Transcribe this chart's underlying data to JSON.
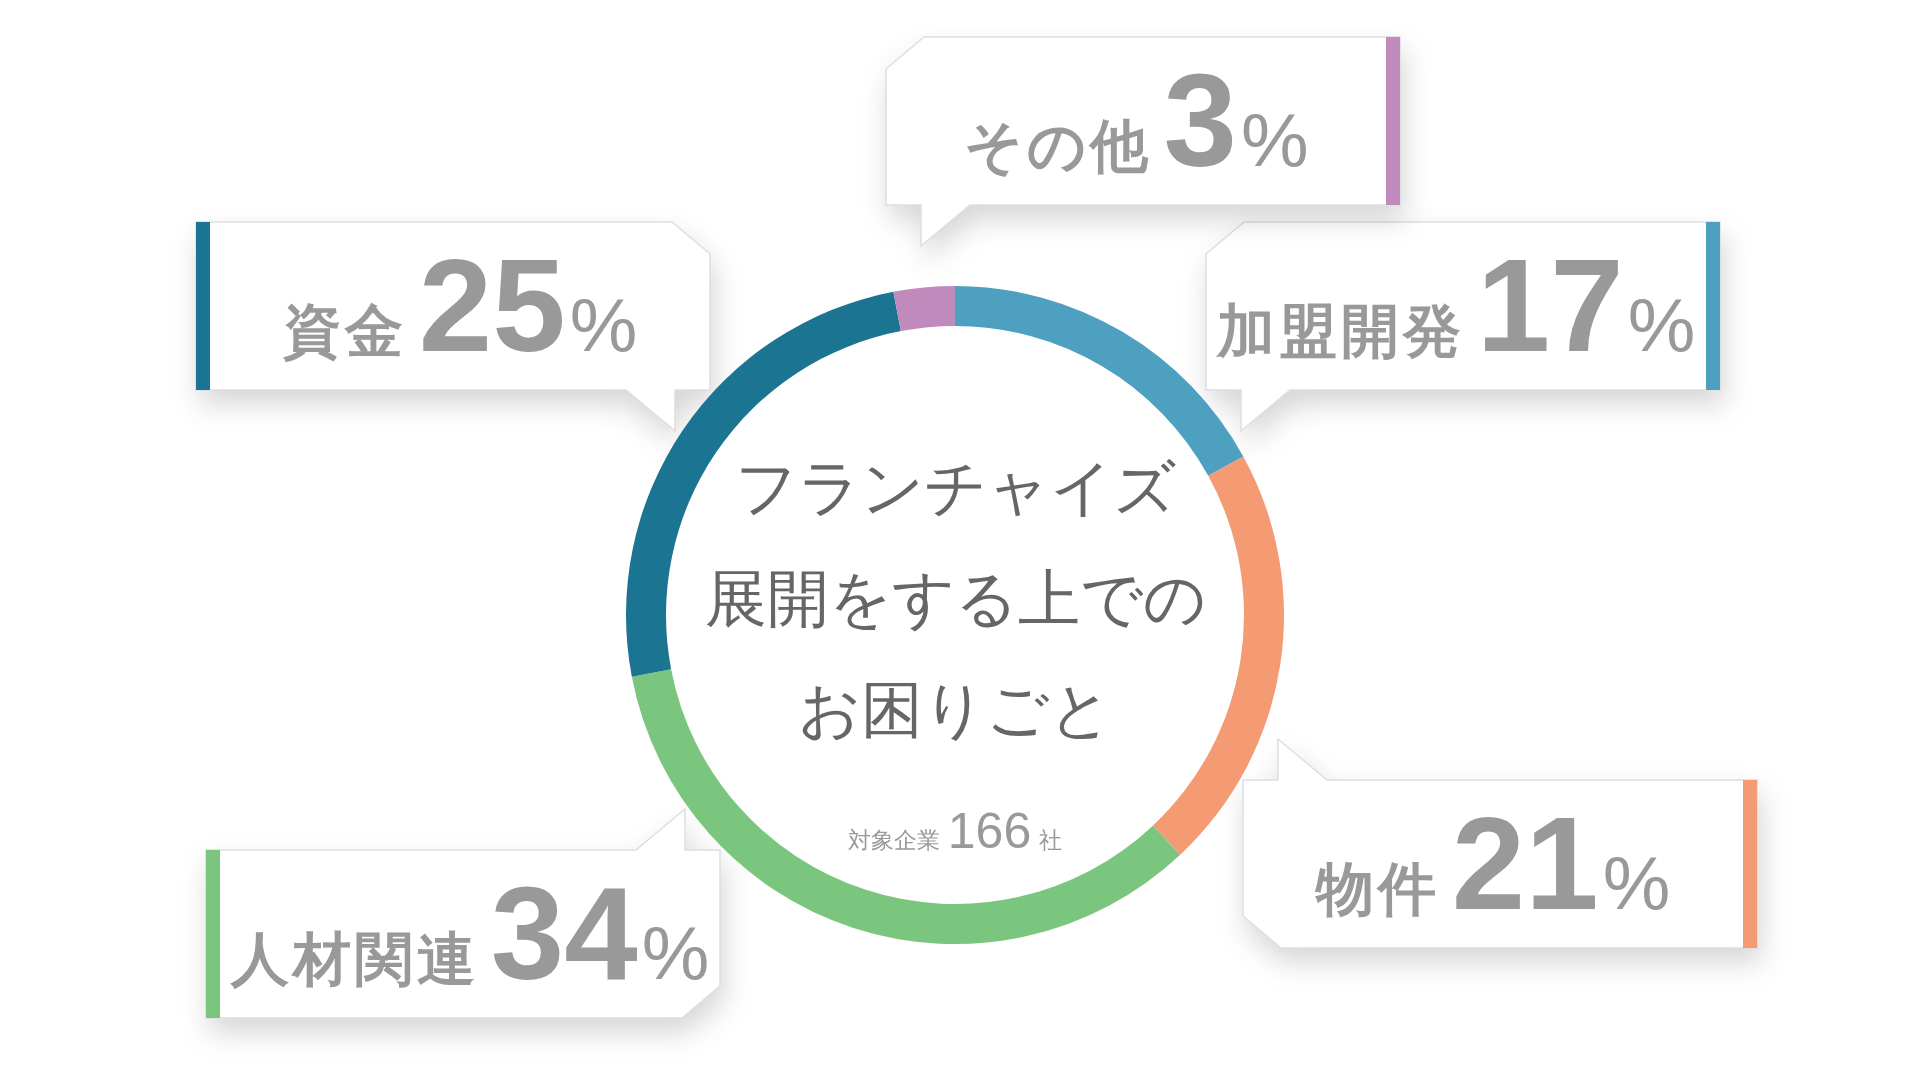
{
  "chart_data": {
    "type": "donut",
    "title": "フランチャイズ展開をする上でのお困りごと",
    "subtitle": "対象企業166社",
    "categories": [
      "加盟開発",
      "物件",
      "人材関連",
      "資金",
      "その他"
    ],
    "values": [
      17,
      21,
      34,
      25,
      3
    ],
    "colors": [
      "#4da0bf",
      "#f59b73",
      "#7bc67f",
      "#1b7491",
      "#c18abd"
    ],
    "value_labels": [
      "17%",
      "21%",
      "34%",
      "25%",
      "3%"
    ]
  }
}
